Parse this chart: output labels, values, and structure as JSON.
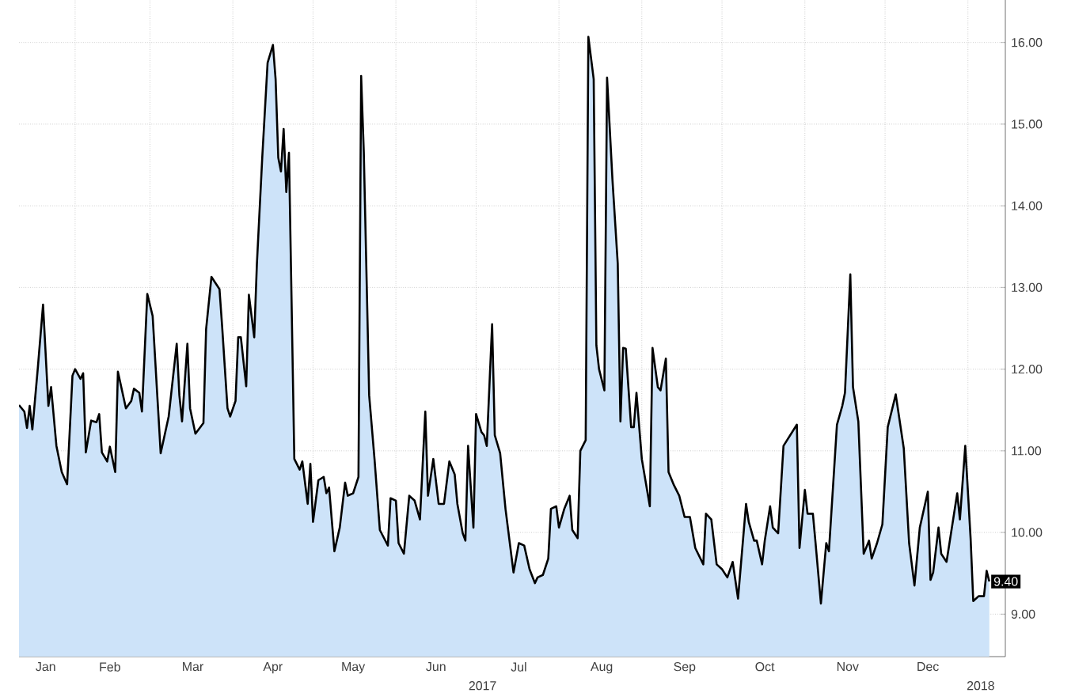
{
  "chart_data": {
    "type": "area",
    "color": "#cde3f9",
    "x": [
      "2017-01-11",
      "2017-01-13",
      "2017-01-14",
      "2017-01-15",
      "2017-01-16",
      "2017-01-18",
      "2017-01-20",
      "2017-01-22",
      "2017-01-23",
      "2017-01-25",
      "2017-01-27",
      "2017-01-29",
      "2017-01-31",
      "2017-02-01",
      "2017-02-03",
      "2017-02-04",
      "2017-02-05",
      "2017-02-07",
      "2017-02-09",
      "2017-02-10",
      "2017-02-11",
      "2017-02-13",
      "2017-02-14",
      "2017-02-16",
      "2017-02-17",
      "2017-02-20",
      "2017-02-22",
      "2017-02-23",
      "2017-02-25",
      "2017-02-26",
      "2017-02-28",
      "2017-03-02",
      "2017-03-05",
      "2017-03-08",
      "2017-03-11",
      "2017-03-12",
      "2017-03-13",
      "2017-03-15",
      "2017-03-16",
      "2017-03-18",
      "2017-03-21",
      "2017-03-22",
      "2017-03-24",
      "2017-03-27",
      "2017-03-28",
      "2017-03-30",
      "2017-03-31",
      "2017-04-02",
      "2017-04-03",
      "2017-04-04",
      "2017-04-06",
      "2017-04-07",
      "2017-04-09",
      "2017-04-10",
      "2017-04-12",
      "2017-04-14",
      "2017-04-16",
      "2017-04-17",
      "2017-04-18",
      "2017-04-19",
      "2017-04-20",
      "2017-04-21",
      "2017-04-22",
      "2017-04-24",
      "2017-04-26",
      "2017-04-27",
      "2017-04-29",
      "2017-04-30",
      "2017-05-01",
      "2017-05-03",
      "2017-05-05",
      "2017-05-06",
      "2017-05-07",
      "2017-05-09",
      "2017-05-11",
      "2017-05-13",
      "2017-05-14",
      "2017-05-16",
      "2017-05-18",
      "2017-05-19",
      "2017-05-20",
      "2017-05-22",
      "2017-05-24",
      "2017-05-26",
      "2017-05-29",
      "2017-05-30",
      "2017-06-01",
      "2017-06-02",
      "2017-06-04",
      "2017-06-06",
      "2017-06-08",
      "2017-06-10",
      "2017-06-12",
      "2017-06-13",
      "2017-06-15",
      "2017-06-17",
      "2017-06-19",
      "2017-06-21",
      "2017-06-23",
      "2017-06-24",
      "2017-06-26",
      "2017-06-27",
      "2017-06-28",
      "2017-06-30",
      "2017-07-01",
      "2017-07-03",
      "2017-07-04",
      "2017-07-05",
      "2017-07-07",
      "2017-07-08",
      "2017-07-10",
      "2017-07-12",
      "2017-07-15",
      "2017-07-17",
      "2017-07-19",
      "2017-07-21",
      "2017-07-23",
      "2017-07-24",
      "2017-07-26",
      "2017-07-28",
      "2017-07-29",
      "2017-07-31",
      "2017-08-01",
      "2017-08-03",
      "2017-08-05",
      "2017-08-06",
      "2017-08-08",
      "2017-08-09",
      "2017-08-11",
      "2017-08-12",
      "2017-08-14",
      "2017-08-15",
      "2017-08-16",
      "2017-08-18",
      "2017-08-19",
      "2017-08-21",
      "2017-08-23",
      "2017-08-24",
      "2017-08-25",
      "2017-08-26",
      "2017-08-28",
      "2017-08-29",
      "2017-08-30",
      "2017-09-01",
      "2017-09-04",
      "2017-09-05",
      "2017-09-07",
      "2017-09-08",
      "2017-09-10",
      "2017-09-11",
      "2017-09-13",
      "2017-09-15",
      "2017-09-17",
      "2017-09-19",
      "2017-09-21",
      "2017-09-24",
      "2017-09-25",
      "2017-09-27",
      "2017-09-29",
      "2017-10-01",
      "2017-10-03",
      "2017-10-05",
      "2017-10-07",
      "2017-10-10",
      "2017-10-11",
      "2017-10-13",
      "2017-10-14",
      "2017-10-16",
      "2017-10-17",
      "2017-10-19",
      "2017-10-20",
      "2017-10-22",
      "2017-10-24",
      "2017-10-29",
      "2017-10-30",
      "2017-11-01",
      "2017-11-02",
      "2017-11-04",
      "2017-11-05",
      "2017-11-07",
      "2017-11-09",
      "2017-11-10",
      "2017-11-13",
      "2017-11-15",
      "2017-11-16",
      "2017-11-18",
      "2017-11-19",
      "2017-11-21",
      "2017-11-23",
      "2017-11-25",
      "2017-11-26",
      "2017-11-28",
      "2017-11-30",
      "2017-12-02",
      "2017-12-05",
      "2017-12-08",
      "2017-12-10",
      "2017-12-12",
      "2017-12-14",
      "2017-12-17",
      "2017-12-18",
      "2017-12-19",
      "2017-12-21",
      "2017-12-22",
      "2017-12-24",
      "2017-12-28",
      "2017-12-29",
      "2017-12-31",
      "2018-01-02",
      "2018-01-03",
      "2018-01-05",
      "2018-01-07",
      "2018-01-08",
      "2018-01-09"
    ],
    "values": [
      11.56,
      11.48,
      11.28,
      11.55,
      11.26,
      12.0,
      12.79,
      11.55,
      11.78,
      11.06,
      10.74,
      10.59,
      11.92,
      12.0,
      11.88,
      11.95,
      10.98,
      11.37,
      11.35,
      11.45,
      10.98,
      10.87,
      11.05,
      10.74,
      11.97,
      11.52,
      11.61,
      11.76,
      11.71,
      11.48,
      12.92,
      12.65,
      10.97,
      11.42,
      12.31,
      11.68,
      11.36,
      12.31,
      11.52,
      11.21,
      11.34,
      12.49,
      13.13,
      12.98,
      12.52,
      11.52,
      11.42,
      11.61,
      12.39,
      12.39,
      11.79,
      12.91,
      12.39,
      13.29,
      14.59,
      15.75,
      15.97,
      15.55,
      14.59,
      14.42,
      14.94,
      14.17,
      14.65,
      10.9,
      10.77,
      10.87,
      10.35,
      10.84,
      10.13,
      10.64,
      10.68,
      10.48,
      10.55,
      9.77,
      10.06,
      10.61,
      10.45,
      10.48,
      10.68,
      15.59,
      14.65,
      11.68,
      10.9,
      10.03,
      9.84,
      10.42,
      10.39,
      9.87,
      9.74,
      10.45,
      10.39,
      10.16,
      11.48,
      10.45,
      10.9,
      10.35,
      10.35,
      10.87,
      10.71,
      10.35,
      9.99,
      9.9,
      11.06,
      10.06,
      11.45,
      11.23,
      11.19,
      11.06,
      12.55,
      11.19,
      10.97,
      10.29,
      9.51,
      9.87,
      9.84,
      9.55,
      9.38,
      9.45,
      9.48,
      9.68,
      10.29,
      10.32,
      10.06,
      10.29,
      10.45,
      10.03,
      9.93,
      11.0,
      11.13,
      16.07,
      15.55,
      12.29,
      12.0,
      11.74,
      15.57,
      14.33,
      13.29,
      11.36,
      12.26,
      12.25,
      11.29,
      11.29,
      11.71,
      10.9,
      10.32,
      12.26,
      11.78,
      11.74,
      12.13,
      10.74,
      10.58,
      10.45,
      10.19,
      10.19,
      9.81,
      9.61,
      10.23,
      10.16,
      9.61,
      9.55,
      9.45,
      9.64,
      9.19,
      10.35,
      10.13,
      9.9,
      9.9,
      9.61,
      9.9,
      10.32,
      10.06,
      9.99,
      11.06,
      11.32,
      9.81,
      10.52,
      10.23,
      10.23,
      9.87,
      9.13,
      9.87,
      9.77,
      11.32,
      11.55,
      11.71,
      13.16,
      11.78,
      11.36,
      9.74,
      9.9,
      9.68,
      9.87,
      10.1,
      11.29,
      11.69,
      11.03,
      9.87,
      9.35,
      10.06,
      10.5,
      9.42,
      9.51,
      10.06,
      9.74,
      9.64,
      10.48,
      10.16,
      11.06,
      9.93,
      9.16,
      9.22,
      9.22,
      9.53,
      9.4
    ],
    "xlim": [
      "2017-01-11",
      "2018-01-15"
    ],
    "xticks": [
      {
        "value": "2017-01-21",
        "label": "Jan"
      },
      {
        "value": "2017-02-01",
        "label": null
      },
      {
        "value": "2017-02-14",
        "label": "Feb"
      },
      {
        "value": "2017-03-01",
        "label": null
      },
      {
        "value": "2017-03-17",
        "label": "Mar"
      },
      {
        "value": "2017-04-01",
        "label": null
      },
      {
        "value": "2017-04-16",
        "label": "Apr"
      },
      {
        "value": "2017-05-01",
        "label": null
      },
      {
        "value": "2017-05-16",
        "label": "May"
      },
      {
        "value": "2017-06-01",
        "label": null
      },
      {
        "value": "2017-06-16",
        "label": "Jun"
      },
      {
        "value": "2017-07-01",
        "label": null
      },
      {
        "value": "2017-07-17",
        "label": "Jul"
      },
      {
        "value": "2017-08-01",
        "label": null
      },
      {
        "value": "2017-08-17",
        "label": "Aug"
      },
      {
        "value": "2017-09-01",
        "label": null
      },
      {
        "value": "2017-09-17",
        "label": "Sep"
      },
      {
        "value": "2017-10-01",
        "label": null
      },
      {
        "value": "2017-10-17",
        "label": "Oct"
      },
      {
        "value": "2017-11-01",
        "label": null
      },
      {
        "value": "2017-11-17",
        "label": "Nov"
      },
      {
        "value": "2017-12-01",
        "label": null
      },
      {
        "value": "2017-12-17",
        "label": "Dec"
      },
      {
        "value": "2018-01-01",
        "label": null
      }
    ],
    "ylim": [
      8.48,
      16.52
    ],
    "yticks": [
      {
        "value": 9,
        "label": "9.00"
      },
      {
        "value": 10,
        "label": "10.00"
      },
      {
        "value": 11,
        "label": "11.00"
      },
      {
        "value": 12,
        "label": "12.00"
      },
      {
        "value": 13,
        "label": "13.00"
      },
      {
        "value": 14,
        "label": "14.00"
      },
      {
        "value": 15,
        "label": "15.00"
      },
      {
        "value": 16,
        "label": "16.00"
      }
    ],
    "grid": true,
    "annotations": [
      "2017",
      "2018",
      {
        "text": "9.40",
        "x": "2018-01-09",
        "y": 9.4
      }
    ]
  }
}
